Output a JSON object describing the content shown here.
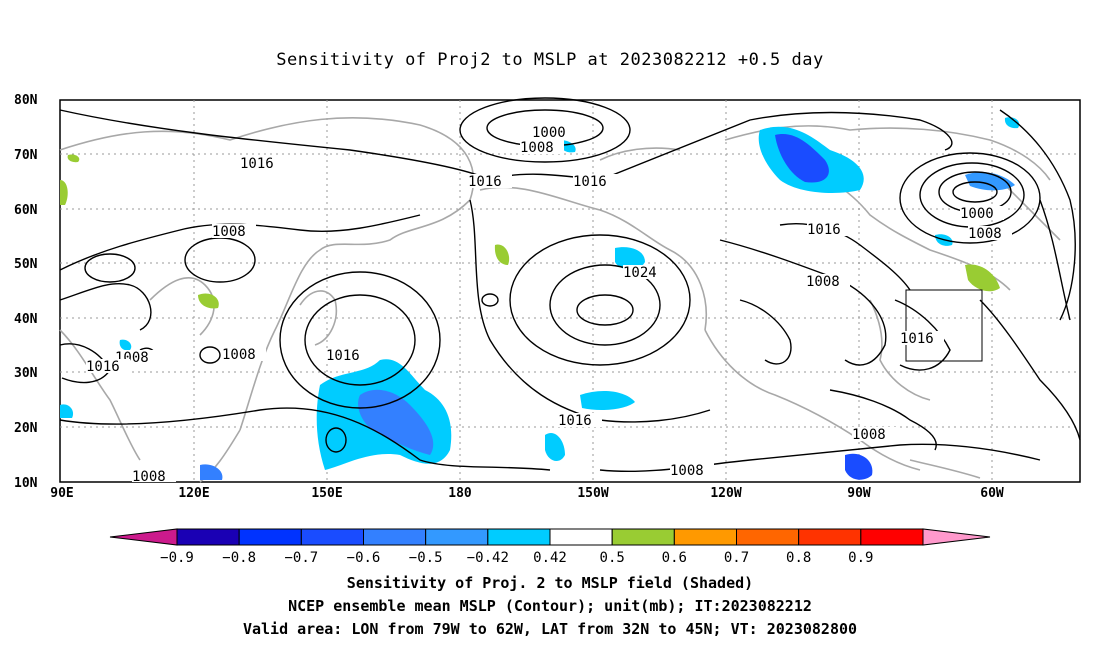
{
  "title": "Sensitivity of Proj2 to MSLP at 2023082212 +0.5 day",
  "lat_labels": [
    "80N",
    "70N",
    "60N",
    "50N",
    "40N",
    "30N",
    "20N",
    "10N"
  ],
  "lon_labels": [
    "90E",
    "120E",
    "150E",
    "180",
    "150W",
    "120W",
    "90W",
    "60W"
  ],
  "colorbar": {
    "labels": [
      "-0.9",
      "-0.8",
      "-0.7",
      "-0.6",
      "-0.5",
      "-0.42",
      "0.42",
      "0.5",
      "0.6",
      "0.7",
      "0.8",
      "0.9"
    ],
    "colors": [
      "#cc1a8c",
      "#1a00b4",
      "#0033ff",
      "#1a4cff",
      "#3380ff",
      "#3399ff",
      "#00ccff",
      "#ffffff",
      "#99cc33",
      "#ff9900",
      "#ff6600",
      "#ff3300",
      "#ff0000",
      "#ff99cc"
    ]
  },
  "contour_labels": [
    "1000",
    "1008",
    "1016",
    "1016",
    "1016",
    "1008",
    "1024",
    "1016",
    "1008",
    "1000",
    "1008",
    "1016",
    "1016",
    "1016",
    "1008",
    "1008",
    "1016",
    "1016",
    "1008",
    "1008",
    "1008"
  ],
  "captions": [
    "Sensitivity of Proj. 2 to MSLP field (Shaded)",
    "NCEP ensemble mean MSLP (Contour); unit(mb); IT:2023082212",
    "Valid area: LON from 79W to 62W, LAT from 32N to 45N; VT: 2023082800"
  ]
}
